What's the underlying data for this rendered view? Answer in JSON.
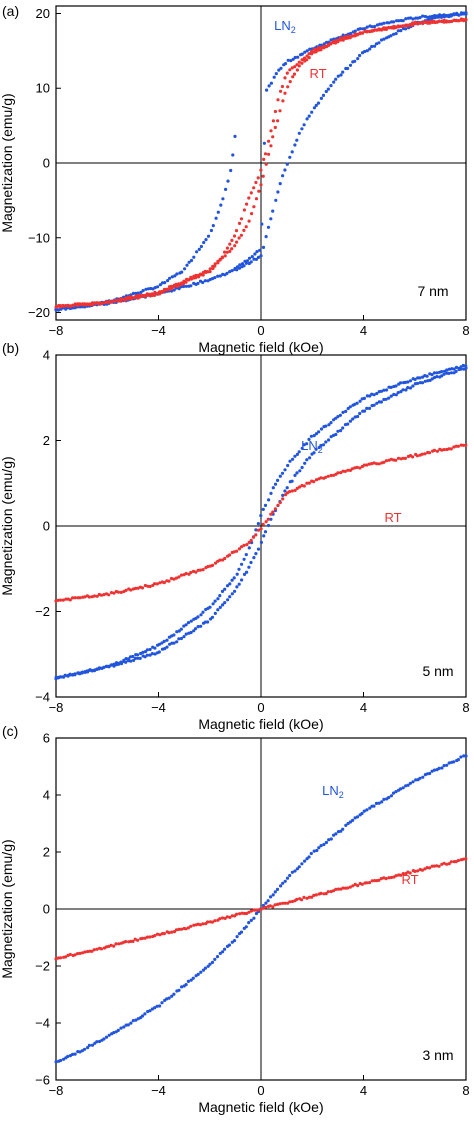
{
  "chart_data": [
    {
      "type": "scatter",
      "panel_label": "(a)",
      "xlabel": "Magnetic field (kOe)",
      "ylabel": "Magnetization (emu/g)",
      "xlim": [
        -8,
        8
      ],
      "ylim": [
        -21,
        21
      ],
      "xticks": [
        -8,
        -4,
        0,
        4,
        8
      ],
      "yticks": [
        -20,
        -10,
        0,
        10,
        20
      ],
      "annotation": "7 nm",
      "series": [
        {
          "name": "LN2",
          "color": "#2255dd",
          "loops": [
            {
              "x": [
                -8,
                -6,
                -4,
                -3,
                -2,
                -1.5,
                -1.2,
                -1.0
              ],
              "y": [
                -19.6,
                -18.6,
                -16.5,
                -14.3,
                -9.5,
                -5.0,
                -1.5,
                3.8
              ]
            },
            {
              "x": [
                -1.0,
                -0.5,
                0,
                0.2,
                0.6,
                1.0,
                2,
                3,
                4,
                5,
                6,
                7,
                8
              ],
              "y": [
                -14.0,
                -13.0,
                -11.5,
                9.5,
                12.0,
                13.5,
                15.3,
                16.8,
                18.0,
                18.8,
                19.4,
                19.8,
                20.0
              ]
            },
            {
              "x": [
                -8,
                -6,
                -4,
                -2,
                -1,
                0,
                0.8,
                1.5,
                2,
                3,
                4,
                5,
                6,
                7,
                8
              ],
              "y": [
                -19.6,
                -18.8,
                -17.5,
                -15.6,
                -14.3,
                -12.5,
                -2.0,
                4.0,
                7.0,
                11.5,
                14.8,
                17.0,
                18.6,
                19.5,
                20.0
              ]
            }
          ]
        },
        {
          "name": "RT",
          "color": "#ee3333",
          "loops": [
            {
              "x": [
                -8,
                -6,
                -4,
                -2,
                -1,
                -0.5,
                0,
                0.5,
                1,
                1.5,
                2,
                3,
                4,
                6,
                8
              ],
              "y": [
                -19.2,
                -18.6,
                -17.3,
                -14.3,
                -11.0,
                -8.0,
                -3.0,
                4.0,
                10.0,
                13.0,
                14.6,
                16.5,
                17.5,
                18.6,
                19.2
              ]
            },
            {
              "x": [
                -8,
                -6,
                -4,
                -2,
                -1.5,
                -1,
                -0.5,
                0,
                0.3,
                0.7,
                1,
                2,
                4,
                6,
                8
              ],
              "y": [
                -19.2,
                -18.7,
                -17.5,
                -14.5,
                -12.5,
                -9.5,
                -5.0,
                -1.0,
                3.0,
                9.0,
                12.0,
                15.0,
                17.5,
                18.7,
                19.2
              ]
            }
          ]
        }
      ]
    },
    {
      "type": "scatter",
      "panel_label": "(b)",
      "xlabel": "Magnetic field (kOe)",
      "ylabel": "Magnetization (emu/g)",
      "xlim": [
        -8,
        8
      ],
      "ylim": [
        -4,
        4
      ],
      "xticks": [
        -8,
        -4,
        0,
        4,
        8
      ],
      "yticks": [
        -4,
        -2,
        0,
        2,
        4
      ],
      "annotation": "5 nm",
      "series": [
        {
          "name": "LN2",
          "color": "#2255dd",
          "loops": [
            {
              "x": [
                -8,
                -6,
                -4,
                -2,
                -1,
                -0.5,
                0,
                0.5,
                1,
                2,
                4,
                6,
                8
              ],
              "y": [
                -3.55,
                -3.3,
                -2.8,
                -1.9,
                -1.2,
                -0.6,
                0.25,
                0.9,
                1.4,
                2.1,
                3.0,
                3.45,
                3.75
              ]
            },
            {
              "x": [
                -8,
                -6,
                -4,
                -2,
                -1,
                -0.5,
                0,
                0.5,
                1,
                2,
                4,
                6,
                8
              ],
              "y": [
                -3.55,
                -3.3,
                -2.95,
                -2.2,
                -1.5,
                -1.0,
                -0.4,
                0.3,
                0.9,
                1.7,
                2.7,
                3.3,
                3.7
              ]
            }
          ]
        },
        {
          "name": "RT",
          "color": "#ee3333",
          "loops": [
            {
              "x": [
                -8,
                -6,
                -4,
                -2,
                -1,
                -0.5,
                0,
                0.5,
                1,
                2,
                4,
                6,
                8
              ],
              "y": [
                -1.75,
                -1.6,
                -1.35,
                -0.95,
                -0.6,
                -0.4,
                -0.05,
                0.35,
                0.75,
                1.05,
                1.4,
                1.65,
                1.9
              ]
            }
          ]
        }
      ]
    },
    {
      "type": "scatter",
      "panel_label": "(c)",
      "xlabel": "Magnetic field (kOe)",
      "ylabel": "Magnetization (emu/g)",
      "xlim": [
        -8,
        8
      ],
      "ylim": [
        -6,
        6
      ],
      "xticks": [
        -8,
        -4,
        0,
        4,
        8
      ],
      "yticks": [
        -6,
        -4,
        -2,
        0,
        2,
        4,
        6
      ],
      "annotation": "3 nm",
      "series": [
        {
          "name": "LN2",
          "color": "#2255dd",
          "loops": [
            {
              "x": [
                -8,
                -6,
                -4,
                -2,
                -1,
                0,
                1,
                2,
                4,
                6,
                8
              ],
              "y": [
                -5.4,
                -4.5,
                -3.4,
                -1.95,
                -1.05,
                0.0,
                1.05,
                1.95,
                3.4,
                4.5,
                5.4
              ]
            }
          ]
        },
        {
          "name": "RT",
          "color": "#ee3333",
          "loops": [
            {
              "x": [
                -8,
                -4,
                0,
                4,
                8
              ],
              "y": [
                -1.75,
                -0.9,
                0.0,
                0.9,
                1.75
              ]
            }
          ]
        }
      ]
    }
  ]
}
